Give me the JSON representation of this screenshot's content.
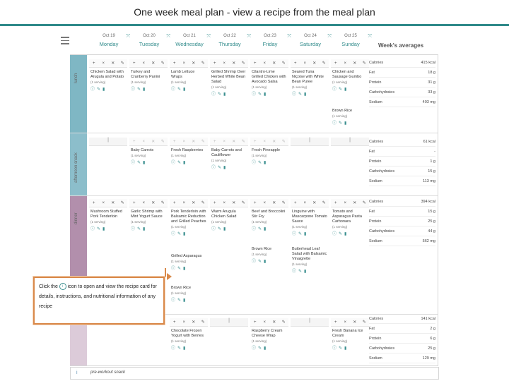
{
  "title": "One week meal plan - view a recipe from the meal plan",
  "colors": {
    "accent": "#2f8a8a",
    "breakfast": "#7fb7c4",
    "snack": "#7fb7c4",
    "dinner": "#b28fac",
    "dessert": "#d9c8d6",
    "callout_border": "#d9894a"
  },
  "days": [
    {
      "date": "Oct 19",
      "name": "Monday"
    },
    {
      "date": "Oct 20",
      "name": "Tuesday"
    },
    {
      "date": "Oct 21",
      "name": "Wednesday"
    },
    {
      "date": "Oct 22",
      "name": "Thursday"
    },
    {
      "date": "Oct 23",
      "name": "Friday"
    },
    {
      "date": "Oct 24",
      "name": "Saturday"
    },
    {
      "date": "Oct 25",
      "name": "Sunday"
    }
  ],
  "weeks_averages_title": "Week's averages",
  "rows": {
    "breakfast": {
      "label": "lunch"
    },
    "snack": {
      "label": "afternoon snack"
    },
    "dinner": {
      "label": "dinner"
    }
  },
  "toolbar": {
    "add": "+",
    "move": "×",
    "remove": "✕",
    "edit": "✎",
    "one": "|"
  },
  "lunch": [
    {
      "name": "Chicken Salad with Arugula and Potato",
      "serving": "(1 serving)"
    },
    {
      "name": "Turkey and Cranberry Panini",
      "serving": "(1 serving)"
    },
    {
      "name": "Lamb Lettuce Wraps",
      "serving": "(1 serving)"
    },
    {
      "name": "Grilled Shrimp Over Herbed White Bean Salad",
      "serving": "(1 serving)"
    },
    {
      "name": "Cilantro-Lime Grilled Chicken with Avocado Salsa",
      "serving": "(1 serving)"
    },
    {
      "name": "Seared Tuna Niçoise with White Bean Puree",
      "serving": "(1 serving)"
    },
    {
      "name": "Chicken and Sausage Gumbo",
      "serving": "(1 serving)"
    }
  ],
  "lunch_extra": {
    "name": "Brown Rice",
    "serving": "(1 serving)"
  },
  "snack": [
    {
      "name": "",
      "serving": ""
    },
    {
      "name": "Baby Carrots",
      "serving": "(1 serving)"
    },
    {
      "name": "Fresh Raspberries",
      "serving": "(1 serving)"
    },
    {
      "name": "Baby Carrots and Cauliflower",
      "serving": "(1 serving)"
    },
    {
      "name": "Fresh Pineapple",
      "serving": "(1 serving)"
    },
    {
      "name": "",
      "serving": ""
    },
    {
      "name": "",
      "serving": ""
    }
  ],
  "dinner": [
    {
      "name": "Mushroom Stuffed Pork Tenderloin",
      "serving": "(1 serving)"
    },
    {
      "name": "Garlic Shrimp with Mint Yogurt Sauce",
      "serving": "(1 serving)"
    },
    {
      "name": "Pork Tenderloin with Balsamic Reduction and Grilled Peaches",
      "serving": "(1 serving)"
    },
    {
      "name": "Warm Arugula Chicken Salad",
      "serving": "(1 serving)"
    },
    {
      "name": "Beef and Broccolini Stir Fry",
      "serving": "(1 serving)"
    },
    {
      "name": "Linguine with Mascarpone Tomato Sauce",
      "serving": "(1 serving)"
    },
    {
      "name": "Tomato and Asparagus Pasta Carbonara",
      "serving": "(1 serving)"
    }
  ],
  "dinner_extra": {
    "wed1": {
      "name": "Grilled Asparagus",
      "serving": "(1 serving)"
    },
    "wed2": {
      "name": "Brown Rice",
      "serving": "(1 serving)"
    },
    "fri": {
      "name": "Brown Rice",
      "serving": "(1 serving)"
    },
    "sat": {
      "name": "Butterhead Leaf Salad with Balsamic Vinaigrette",
      "serving": "(1 serving)"
    }
  },
  "dessert": {
    "wed": {
      "name": "Chocolate Frozen Yogurt with Berries",
      "serving": "(1 serving)"
    },
    "fri": {
      "name": "Raspberry Cream Cheese Wrap",
      "serving": "(1 serving)"
    },
    "sun": {
      "name": "Fresh Banana Ice Cream",
      "serving": "(1 serving)"
    }
  },
  "averages": {
    "lunch": [
      {
        "label": "Calories",
        "value": "415 kcal"
      },
      {
        "label": "Fat",
        "value": "18 g"
      },
      {
        "label": "Protein",
        "value": "31 g"
      },
      {
        "label": "Carbohydrates",
        "value": "33 g"
      },
      {
        "label": "Sodium",
        "value": "403 mg"
      }
    ],
    "snack": [
      {
        "label": "Calories",
        "value": "61 kcal"
      },
      {
        "label": "Fat",
        "value": "-"
      },
      {
        "label": "Protein",
        "value": "1 g"
      },
      {
        "label": "Carbohydrates",
        "value": "15 g"
      },
      {
        "label": "Sodium",
        "value": "113 mg"
      }
    ],
    "dinner": [
      {
        "label": "Calories",
        "value": "394 kcal"
      },
      {
        "label": "Fat",
        "value": "15 g"
      },
      {
        "label": "Protein",
        "value": "25 g"
      },
      {
        "label": "Carbohydrates",
        "value": "44 g"
      },
      {
        "label": "Sodium",
        "value": "562 mg"
      }
    ],
    "dessert": [
      {
        "label": "Calories",
        "value": "141 kcal"
      },
      {
        "label": "Fat",
        "value": "2 g"
      },
      {
        "label": "Protein",
        "value": "6 g"
      },
      {
        "label": "Carbohydrates",
        "value": "25 g"
      },
      {
        "label": "Sodium",
        "value": "129 mg"
      }
    ]
  },
  "callout": {
    "before": "Click the",
    "icon": "i",
    "after": "icon to open and view the recipe card for details, instructions, and nutritional information of any recipe"
  },
  "footer": {
    "label": "pre-workout snack",
    "icon": "i"
  }
}
